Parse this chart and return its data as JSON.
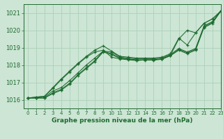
{
  "background_color": "#cce5d4",
  "grid_color": "#a8cdb5",
  "line_color": "#1e6b30",
  "title": "Graphe pression niveau de la mer (hPa)",
  "xlim": [
    -0.5,
    23
  ],
  "ylim": [
    1015.5,
    1021.5
  ],
  "yticks": [
    1016,
    1017,
    1018,
    1019,
    1020,
    1021
  ],
  "xticks": [
    0,
    1,
    2,
    3,
    4,
    5,
    6,
    7,
    8,
    9,
    10,
    11,
    12,
    13,
    14,
    15,
    16,
    17,
    18,
    19,
    20,
    21,
    22,
    23
  ],
  "series": [
    [
      1016.1,
      1016.15,
      1016.2,
      1016.65,
      1017.15,
      1017.6,
      1018.05,
      1018.45,
      1018.75,
      1018.85,
      1018.45,
      1018.35,
      1018.3,
      1018.25,
      1018.3,
      1018.3,
      1018.35,
      1018.55,
      1019.5,
      1020.0,
      1019.85,
      1020.4,
      1020.65,
      1021.1
    ],
    [
      1016.1,
      1016.15,
      1016.2,
      1016.7,
      1017.2,
      1017.65,
      1018.1,
      1018.5,
      1018.85,
      1019.1,
      1018.8,
      1018.5,
      1018.45,
      1018.4,
      1018.4,
      1018.4,
      1018.45,
      1018.65,
      1019.55,
      1019.15,
      1019.85,
      1020.4,
      1020.65,
      1021.1
    ],
    [
      1016.1,
      1016.1,
      1016.15,
      1016.5,
      1016.7,
      1017.1,
      1017.55,
      1018.0,
      1018.4,
      1018.8,
      1018.75,
      1018.45,
      1018.4,
      1018.35,
      1018.35,
      1018.35,
      1018.4,
      1018.6,
      1018.95,
      1018.75,
      1018.95,
      1020.25,
      1020.5,
      1021.1
    ],
    [
      1016.1,
      1016.1,
      1016.1,
      1016.4,
      1016.6,
      1016.95,
      1017.45,
      1017.85,
      1018.25,
      1018.8,
      1018.65,
      1018.4,
      1018.35,
      1018.3,
      1018.3,
      1018.3,
      1018.35,
      1018.55,
      1018.9,
      1018.7,
      1018.9,
      1020.2,
      1020.45,
      1021.1
    ],
    [
      1016.1,
      1016.1,
      1016.1,
      1016.35,
      1016.55,
      1016.9,
      1017.4,
      1017.8,
      1018.2,
      1018.75,
      1018.6,
      1018.38,
      1018.33,
      1018.28,
      1018.28,
      1018.28,
      1018.33,
      1018.53,
      1018.85,
      1018.65,
      1018.85,
      1020.15,
      1020.4,
      1021.1
    ]
  ]
}
